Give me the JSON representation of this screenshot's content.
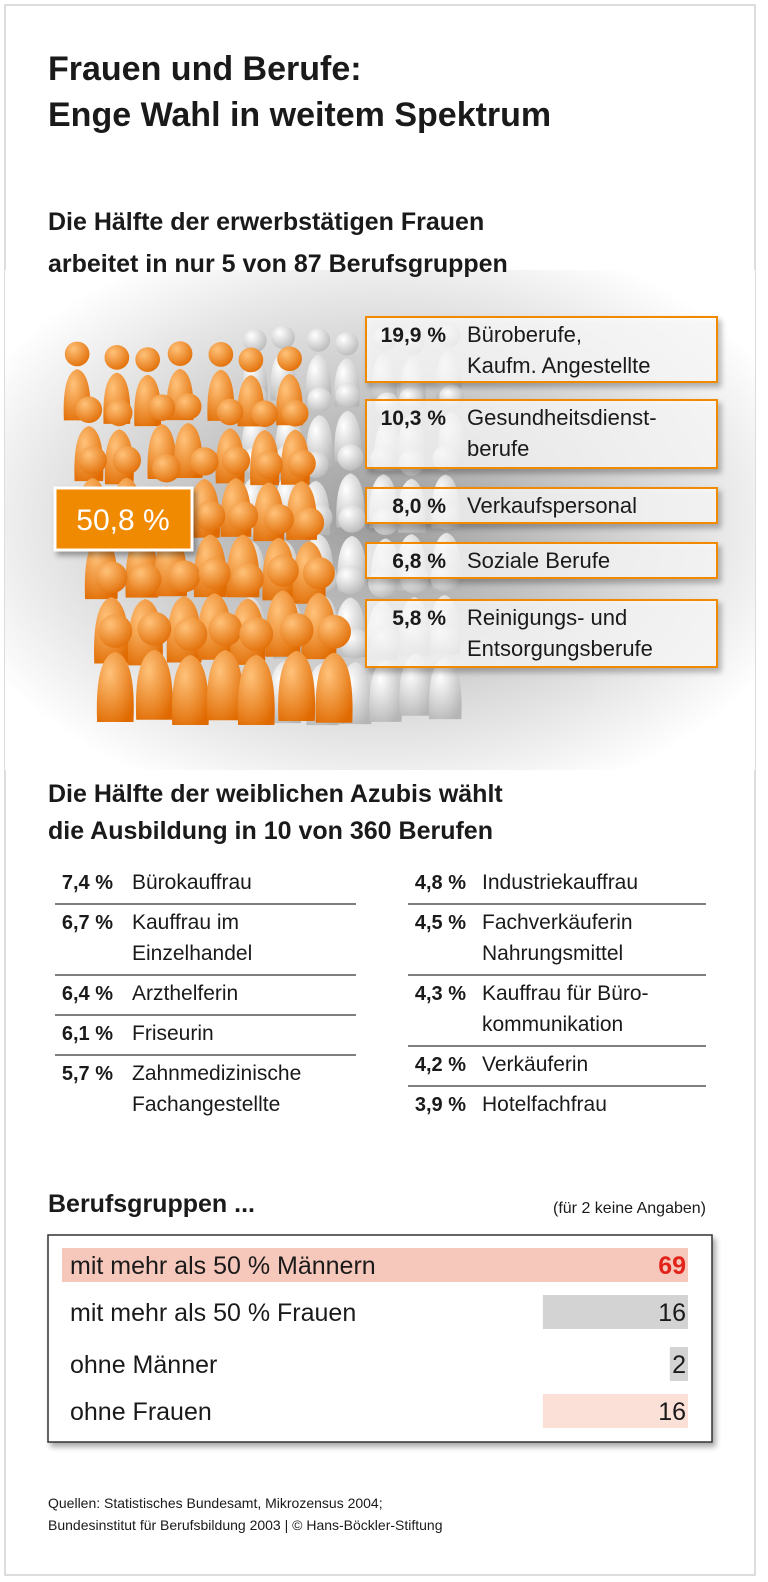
{
  "header": {
    "title_line1": "Frauen und Berufe:",
    "title_line2": "Enge Wahl in weitem Spektrum"
  },
  "section1": {
    "heading_line1": "Die Hälfte der erwerbstätigen Frauen",
    "heading_line2": "arbeitet in nur 5 von 87 Berufsgruppen",
    "total": "50,8 %",
    "items": [
      {
        "share": "19,9 %",
        "lines": [
          "Büroberufe,",
          "Kaufm. Angestellte"
        ]
      },
      {
        "share": "10,3 %",
        "lines": [
          "Gesundheitsdienst-",
          "berufe"
        ]
      },
      {
        "share": "8,0 %",
        "lines": [
          "Verkaufspersonal"
        ]
      },
      {
        "share": "6,8 %",
        "lines": [
          "Soziale Berufe"
        ]
      },
      {
        "share": "5,8 %",
        "lines": [
          "Reinigungs- und",
          "Entsorgungsberufe"
        ]
      }
    ]
  },
  "section2": {
    "heading_line1": "Die Hälfte der weiblichen Azubis wählt",
    "heading_line2": "die Ausbildung in 10 von 360 Berufen",
    "left": [
      {
        "share": "7,4 %",
        "lines": [
          "Bürokauffrau"
        ]
      },
      {
        "share": "6,7 %",
        "lines": [
          "Kauffrau im",
          "Einzelhandel"
        ]
      },
      {
        "share": "6,4 %",
        "lines": [
          "Arzthelferin"
        ]
      },
      {
        "share": "6,1 %",
        "lines": [
          "Friseurin"
        ]
      },
      {
        "share": "5,7 %",
        "lines": [
          "Zahnmedizinische",
          "Fachangestellte"
        ]
      }
    ],
    "right": [
      {
        "share": "4,8 %",
        "lines": [
          "Industriekauffrau"
        ]
      },
      {
        "share": "4,5 %",
        "lines": [
          "Fachverkäuferin",
          "Nahrungsmittel"
        ]
      },
      {
        "share": "4,3 %",
        "lines": [
          "Kauffrau für Büro-",
          "kommunikation"
        ]
      },
      {
        "share": "4,2 %",
        "lines": [
          "Verkäuferin"
        ]
      },
      {
        "share": "3,9 %",
        "lines": [
          "Hotelfachfrau"
        ]
      }
    ]
  },
  "section3": {
    "heading": "Berufsgruppen ...",
    "note": "(für 2 keine Angaben)",
    "rows": [
      {
        "label": "mit mehr als 50 % Männern",
        "value": 69,
        "color": "#f6c7bb",
        "value_color": "#e2231a"
      },
      {
        "label": "mit mehr als 50 % Frauen",
        "value": 16,
        "color": "#d3d3d3",
        "value_color": "#1a1a1a"
      },
      {
        "label": "ohne Männer",
        "value": 2,
        "color": "#d3d3d3",
        "value_color": "#1a1a1a"
      },
      {
        "label": "ohne Frauen",
        "value": 16,
        "color": "#fbe0d7",
        "value_color": "#1a1a1a"
      }
    ]
  },
  "footer": {
    "lines": [
      "Quellen: Statistisches Bundesamt, Mikrozensus 2004;",
      "Bundesinstitut für Berufsbildung 2003 | © Hans-Böckler-Stiftung"
    ]
  }
}
